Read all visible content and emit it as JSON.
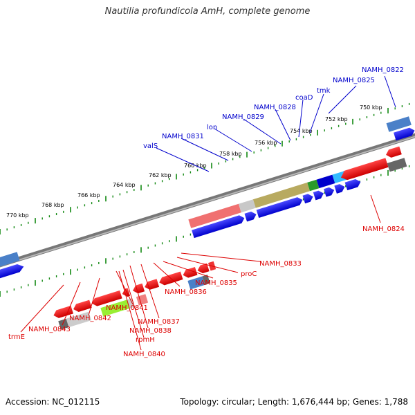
{
  "title": "Nautilia profundicola AmH, complete genome",
  "footer": {
    "accession": "Accession: NC_012115",
    "summary": "Topology: circular; Length: 1,676,444 bp; Genes: 1,788"
  },
  "colors": {
    "forward_label": "#0000cc",
    "reverse_label": "#dd0000",
    "backbone": "#777777",
    "tick": "#118811"
  },
  "kbp_labels": [
    "750 kbp",
    "752 kbp",
    "754 kbp",
    "756 kbp",
    "758 kbp",
    "760 kbp",
    "762 kbp",
    "764 kbp",
    "766 kbp",
    "768 kbp",
    "770 kbp"
  ],
  "forward_labels": [
    "NAMH_0822",
    "NAMH_0825",
    "tmk",
    "coaD",
    "NAMH_0828",
    "NAMH_0829",
    "lon",
    "NAMH_0831",
    "valS"
  ],
  "reverse_labels": [
    "NAMH_0824",
    "NAMH_0833",
    "proC",
    "NAMH_0835",
    "NAMH_0836",
    "NAMH_0837",
    "NAMH_0838",
    "rpmH",
    "NAMH_0840",
    "NAMH_0841",
    "NAMH_0842",
    "NAMH_0843",
    "trmE"
  ]
}
